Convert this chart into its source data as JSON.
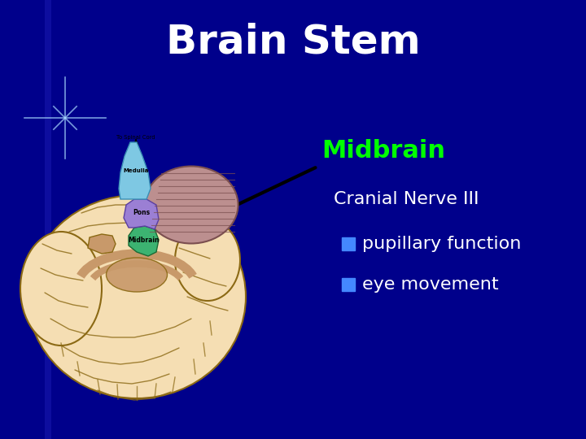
{
  "title": "Brain Stem",
  "title_color": "#FFFFFF",
  "title_fontsize": 36,
  "title_fontweight": "bold",
  "background_color": "#00008B",
  "subtitle": "Midbrain",
  "subtitle_color": "#00FF00",
  "subtitle_fontsize": 22,
  "subtitle_fontweight": "bold",
  "cranial_label": "Cranial Nerve III",
  "cranial_color": "#FFFFFF",
  "cranial_fontsize": 16,
  "bullet_items": [
    "pupillary function",
    "eye movement"
  ],
  "bullet_color": "#FFFFFF",
  "bullet_fontsize": 16,
  "bullet_square_color": "#4488FF",
  "fig_width": 7.2,
  "fig_height": 5.4,
  "dpi": 100
}
